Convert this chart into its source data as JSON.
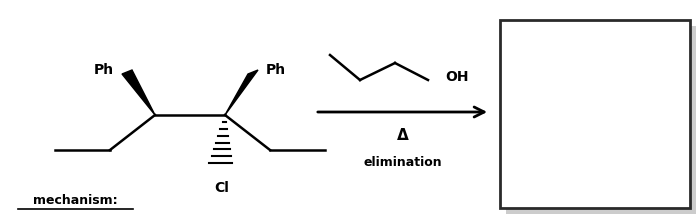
{
  "bg_color": "#ffffff",
  "molecule_color": "#000000",
  "arrow_color": "#000000",
  "box_color": "#2a2a2a",
  "shadow_color": "#cccccc",
  "text_mechanism": "mechanism:",
  "text_delta": "Δ",
  "text_elimination": "elimination",
  "text_Ph1": "Ph",
  "text_Ph2": "Ph",
  "text_OH": "OH",
  "text_Cl": "Cl"
}
